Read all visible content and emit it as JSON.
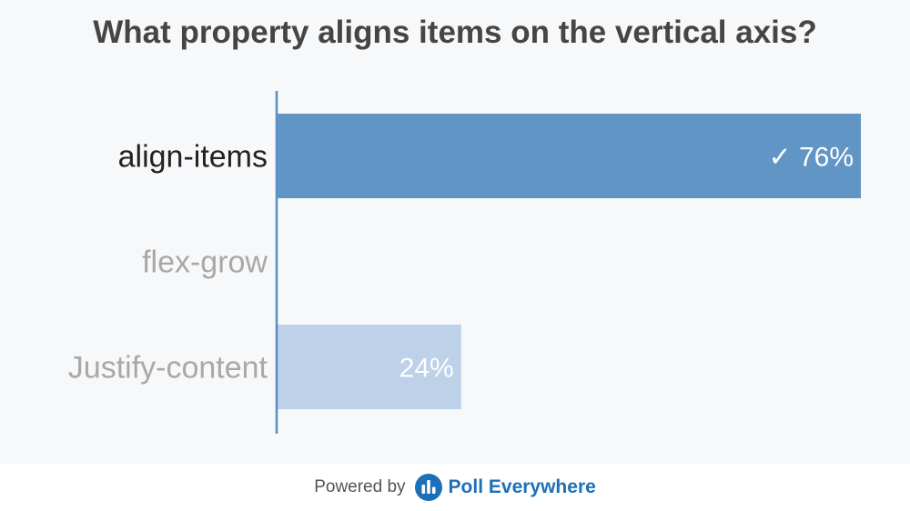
{
  "question": "What property aligns items on the vertical axis?",
  "chart_data": {
    "type": "bar",
    "orientation": "horizontal",
    "categories": [
      "align-items",
      "flex-grow",
      "Justify-content"
    ],
    "values": [
      76,
      0,
      24
    ],
    "value_labels": [
      "76%",
      "",
      "24%"
    ],
    "correct": [
      true,
      false,
      false
    ],
    "correct_marker": "✓",
    "xlim": [
      0,
      76
    ],
    "grid": false
  },
  "colors": {
    "bar_correct": "#6195c6",
    "bar_other": "#bdd1e9",
    "axis": "#5a8fc4",
    "label_correct": "#222222",
    "label_other": "#a8a8a8",
    "value_correct": "#ffffff",
    "value_other": "#ffffff"
  },
  "footer": {
    "powered_by": "Powered by",
    "brand": "Poll Everywhere",
    "logo_icon": "poll-everywhere-logo-icon"
  }
}
